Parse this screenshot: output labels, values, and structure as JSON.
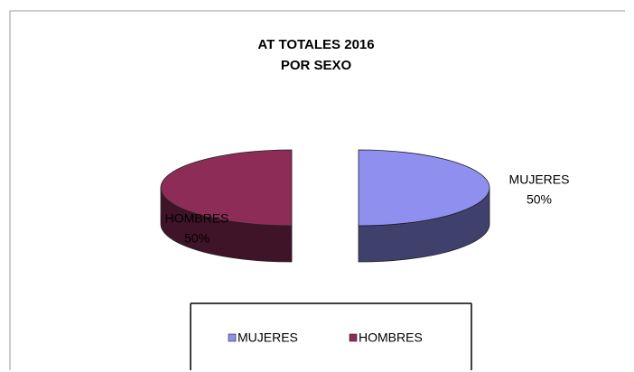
{
  "chart_data": {
    "type": "pie",
    "title": [
      "AT TOTALES 2016",
      "POR SEXO"
    ],
    "categories": [
      "MUJERES",
      "HOMBRES"
    ],
    "values": [
      50,
      50
    ],
    "value_labels": [
      "50%",
      "50%"
    ],
    "colors": [
      "#8f8ff0",
      "#8e2c58"
    ],
    "legend": "bottom"
  }
}
